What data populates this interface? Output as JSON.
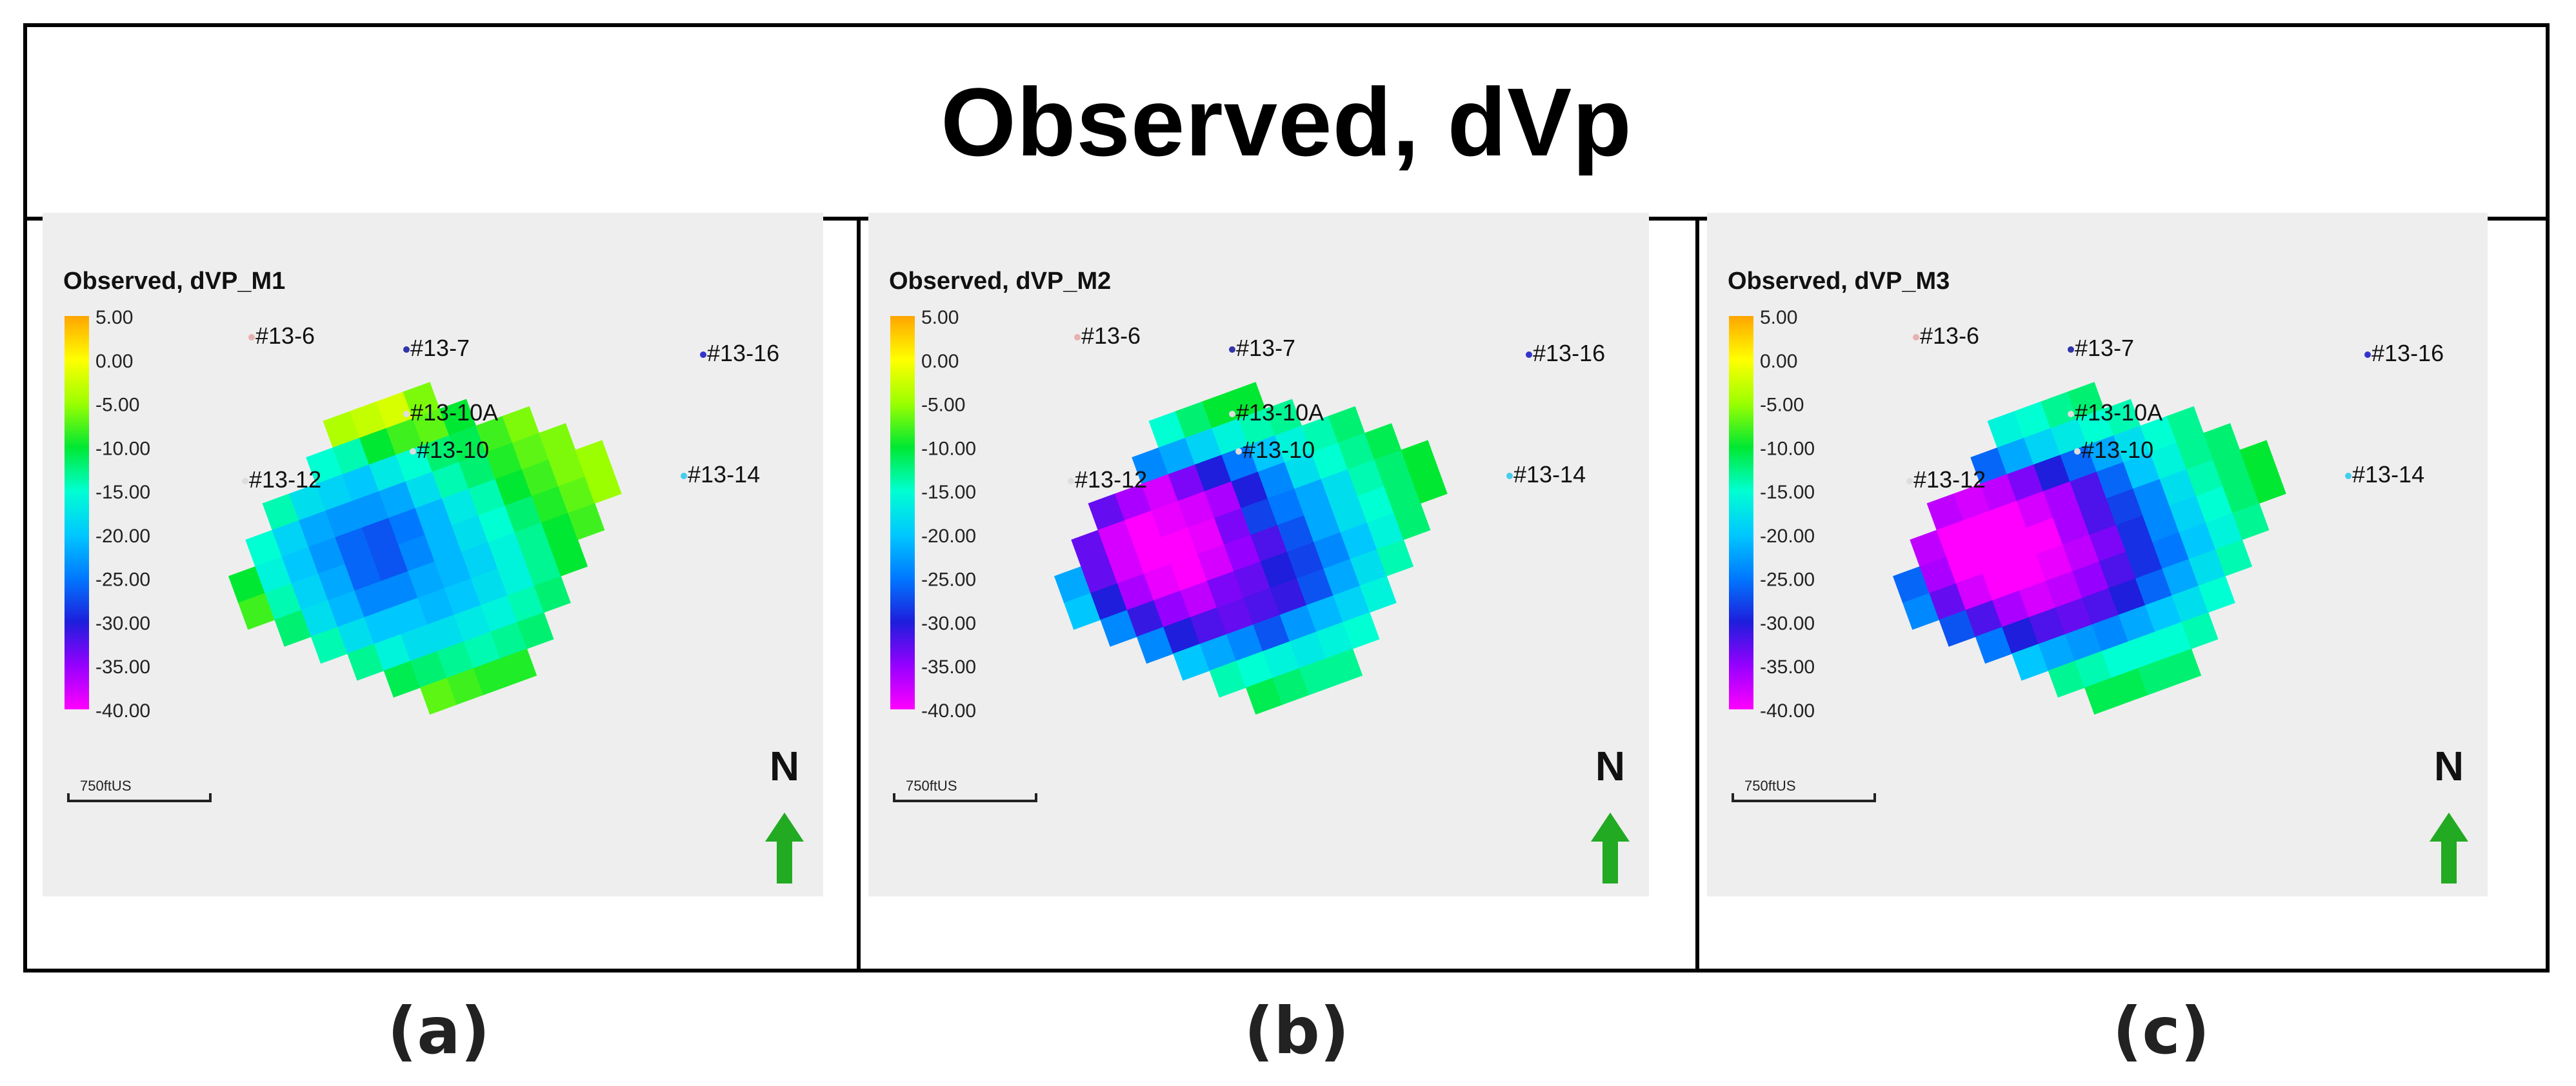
{
  "figure_title": "Observed, dVp",
  "colorbar": {
    "ticks": [
      "5.00",
      "0.00",
      "-5.00",
      "-10.00",
      "-15.00",
      "-20.00",
      "-25.00",
      "-30.00",
      "-35.00",
      "-40.00"
    ],
    "colors": [
      "#ffa500",
      "#ffff00",
      "#9bff00",
      "#00e832",
      "#00ffd2",
      "#00c8ff",
      "#0078ff",
      "#1e1edc",
      "#9600ff",
      "#ff00ff"
    ]
  },
  "scale_bar_label": "750ftUS",
  "north_label": "N",
  "colors": {
    "background": "#eeeeee",
    "arrow": "#22aa22"
  },
  "panels": [
    {
      "map_title": "Observed, dVP_M1",
      "caption": "(a)",
      "wells": [
        {
          "label": "#13-6",
          "dot_color": "#e8b0b0"
        },
        {
          "label": "#13-7",
          "dot_color": "#3333aa"
        },
        {
          "label": "#13-16",
          "dot_color": "#3333cc"
        },
        {
          "label": "#13-10A",
          "dot_color": "#dddddd"
        },
        {
          "label": "#13-10",
          "dot_color": "#dddddd"
        },
        {
          "label": "#13-12",
          "dot_color": "#dddddd"
        },
        {
          "label": "#13-14",
          "dot_color": "#44ccee"
        }
      ],
      "grid": [
        [
          -2,
          -2,
          -5,
          -3,
          -3,
          -4,
          -3,
          -2,
          -6,
          -5,
          -7,
          -9,
          -3,
          -5
        ],
        [
          -4,
          -6,
          -11,
          -12,
          -15,
          -14,
          -10,
          -8,
          -7,
          -10,
          -6,
          -5,
          -7,
          -6
        ],
        [
          -8,
          -10,
          -14,
          -18,
          -19,
          -20,
          -17,
          -15,
          -12,
          -11,
          -8,
          -6,
          -9,
          -8
        ],
        [
          -12,
          -15,
          -19,
          -22,
          -23,
          -23,
          -22,
          -18,
          -14,
          -12,
          -9,
          -7,
          -6,
          -5
        ],
        [
          -10,
          -16,
          -20,
          -23,
          -26,
          -27,
          -25,
          -21,
          -17,
          -14,
          -10,
          -8,
          -6,
          -5
        ],
        [
          -8,
          -14,
          -19,
          -22,
          -26,
          -27,
          -24,
          -21,
          -18,
          -15,
          -12,
          -9,
          -7,
          -5
        ],
        [
          -6,
          -12,
          -18,
          -21,
          -24,
          -24,
          -22,
          -21,
          -19,
          -16,
          -13,
          -10,
          -8,
          -6
        ],
        [
          -5,
          -9,
          -14,
          -18,
          -20,
          -20,
          -21,
          -20,
          -18,
          -16,
          -13,
          -10,
          -8,
          -5
        ],
        [
          -5,
          -7,
          -10,
          -13,
          -16,
          -18,
          -18,
          -17,
          -16,
          -14,
          -12,
          -9,
          -7,
          -5
        ],
        [
          -4,
          -5,
          -7,
          -9,
          -11,
          -12,
          -13,
          -14,
          -13,
          -12,
          -10,
          -8,
          -6,
          -4
        ],
        [
          -3,
          -4,
          -5,
          -6,
          -6,
          -7,
          -8,
          -9,
          -9,
          -8,
          -7,
          -6,
          -4,
          -3
        ]
      ]
    },
    {
      "map_title": "Observed, dVP_M2",
      "caption": "(b)",
      "wells": [
        {
          "label": "#13-6",
          "dot_color": "#e8b0b0"
        },
        {
          "label": "#13-7",
          "dot_color": "#3333aa"
        },
        {
          "label": "#13-16",
          "dot_color": "#3333cc"
        },
        {
          "label": "#13-10A",
          "dot_color": "#dddddd"
        },
        {
          "label": "#13-10",
          "dot_color": "#dddddd"
        },
        {
          "label": "#13-12",
          "dot_color": "#dddddd"
        },
        {
          "label": "#13-14",
          "dot_color": "#44ccee"
        }
      ],
      "grid": [
        [
          -9,
          -11,
          -13,
          -12,
          -13,
          -15,
          -12,
          -10,
          -10,
          -11,
          -12,
          -10,
          -9,
          -8
        ],
        [
          -14,
          -18,
          -22,
          -25,
          -24,
          -22,
          -19,
          -16,
          -14,
          -13,
          -12,
          -10,
          -9,
          -8
        ],
        [
          -20,
          -26,
          -33,
          -36,
          -38,
          -34,
          -30,
          -25,
          -20,
          -16,
          -14,
          -12,
          -10,
          -9
        ],
        [
          -24,
          -33,
          -38,
          -40,
          -39,
          -38,
          -36,
          -30,
          -24,
          -18,
          -15,
          -13,
          -11,
          -9
        ],
        [
          -22,
          -33,
          -38,
          -40,
          -40,
          -39,
          -34,
          -28,
          -25,
          -22,
          -18,
          -14,
          -12,
          -10
        ],
        [
          -20,
          -30,
          -36,
          -39,
          -40,
          -38,
          -35,
          -32,
          -27,
          -22,
          -18,
          -15,
          -12,
          -10
        ],
        [
          -16,
          -24,
          -31,
          -35,
          -37,
          -34,
          -33,
          -30,
          -28,
          -24,
          -20,
          -16,
          -12,
          -10
        ],
        [
          -14,
          -18,
          -24,
          -30,
          -32,
          -33,
          -32,
          -31,
          -27,
          -22,
          -18,
          -14,
          -11,
          -9
        ],
        [
          -12,
          -15,
          -18,
          -20,
          -22,
          -24,
          -27,
          -23,
          -21,
          -19,
          -16,
          -13,
          -10,
          -8
        ],
        [
          -9,
          -10,
          -11,
          -12,
          -14,
          -15,
          -16,
          -17,
          -16,
          -15,
          -13,
          -11,
          -9,
          -8
        ],
        [
          -8,
          -8,
          -9,
          -10,
          -10,
          -11,
          -12,
          -13,
          -13,
          -12,
          -11,
          -10,
          -9,
          -8
        ]
      ]
    },
    {
      "map_title": "Observed, dVP_M3",
      "caption": "(c)",
      "wells": [
        {
          "label": "#13-6",
          "dot_color": "#e8b0b0"
        },
        {
          "label": "#13-7",
          "dot_color": "#3333aa"
        },
        {
          "label": "#13-16",
          "dot_color": "#3333cc"
        },
        {
          "label": "#13-10A",
          "dot_color": "#dddddd"
        },
        {
          "label": "#13-10",
          "dot_color": "#dddddd"
        },
        {
          "label": "#13-12",
          "dot_color": "#dddddd"
        },
        {
          "label": "#13-14",
          "dot_color": "#44ccee"
        }
      ],
      "grid": [
        [
          -14,
          -16,
          -18,
          -17,
          -16,
          -16,
          -15,
          -13,
          -12,
          -11,
          -11,
          -10,
          -9,
          -8
        ],
        [
          -20,
          -26,
          -30,
          -28,
          -26,
          -22,
          -19,
          -17,
          -15,
          -14,
          -12,
          -11,
          -10,
          -9
        ],
        [
          -26,
          -34,
          -37,
          -38,
          -37,
          -34,
          -30,
          -26,
          -22,
          -18,
          -15,
          -13,
          -11,
          -10
        ],
        [
          -28,
          -37,
          -40,
          -40,
          -40,
          -38,
          -36,
          -32,
          -26,
          -20,
          -16,
          -13,
          -12,
          -10
        ],
        [
          -26,
          -36,
          -40,
          -40,
          -40,
          -40,
          -36,
          -32,
          -28,
          -24,
          -18,
          -14,
          -12,
          -10
        ],
        [
          -24,
          -33,
          -38,
          -40,
          -40,
          -39,
          -37,
          -34,
          -29,
          -24,
          -19,
          -15,
          -12,
          -10
        ],
        [
          -20,
          -27,
          -32,
          -36,
          -38,
          -37,
          -35,
          -32,
          -29,
          -25,
          -20,
          -16,
          -13,
          -10
        ],
        [
          -16,
          -20,
          -25,
          -30,
          -32,
          -33,
          -32,
          -30,
          -26,
          -22,
          -18,
          -14,
          -11,
          -9
        ],
        [
          -12,
          -14,
          -17,
          -20,
          -22,
          -23,
          -24,
          -22,
          -20,
          -18,
          -15,
          -12,
          -10,
          -8
        ],
        [
          -10,
          -10,
          -11,
          -12,
          -13,
          -14,
          -15,
          -15,
          -15,
          -14,
          -12,
          -11,
          -9,
          -8
        ],
        [
          -8,
          -8,
          -9,
          -10,
          -10,
          -11,
          -11,
          -12,
          -12,
          -11,
          -10,
          -9,
          -8,
          -8
        ]
      ]
    }
  ]
}
